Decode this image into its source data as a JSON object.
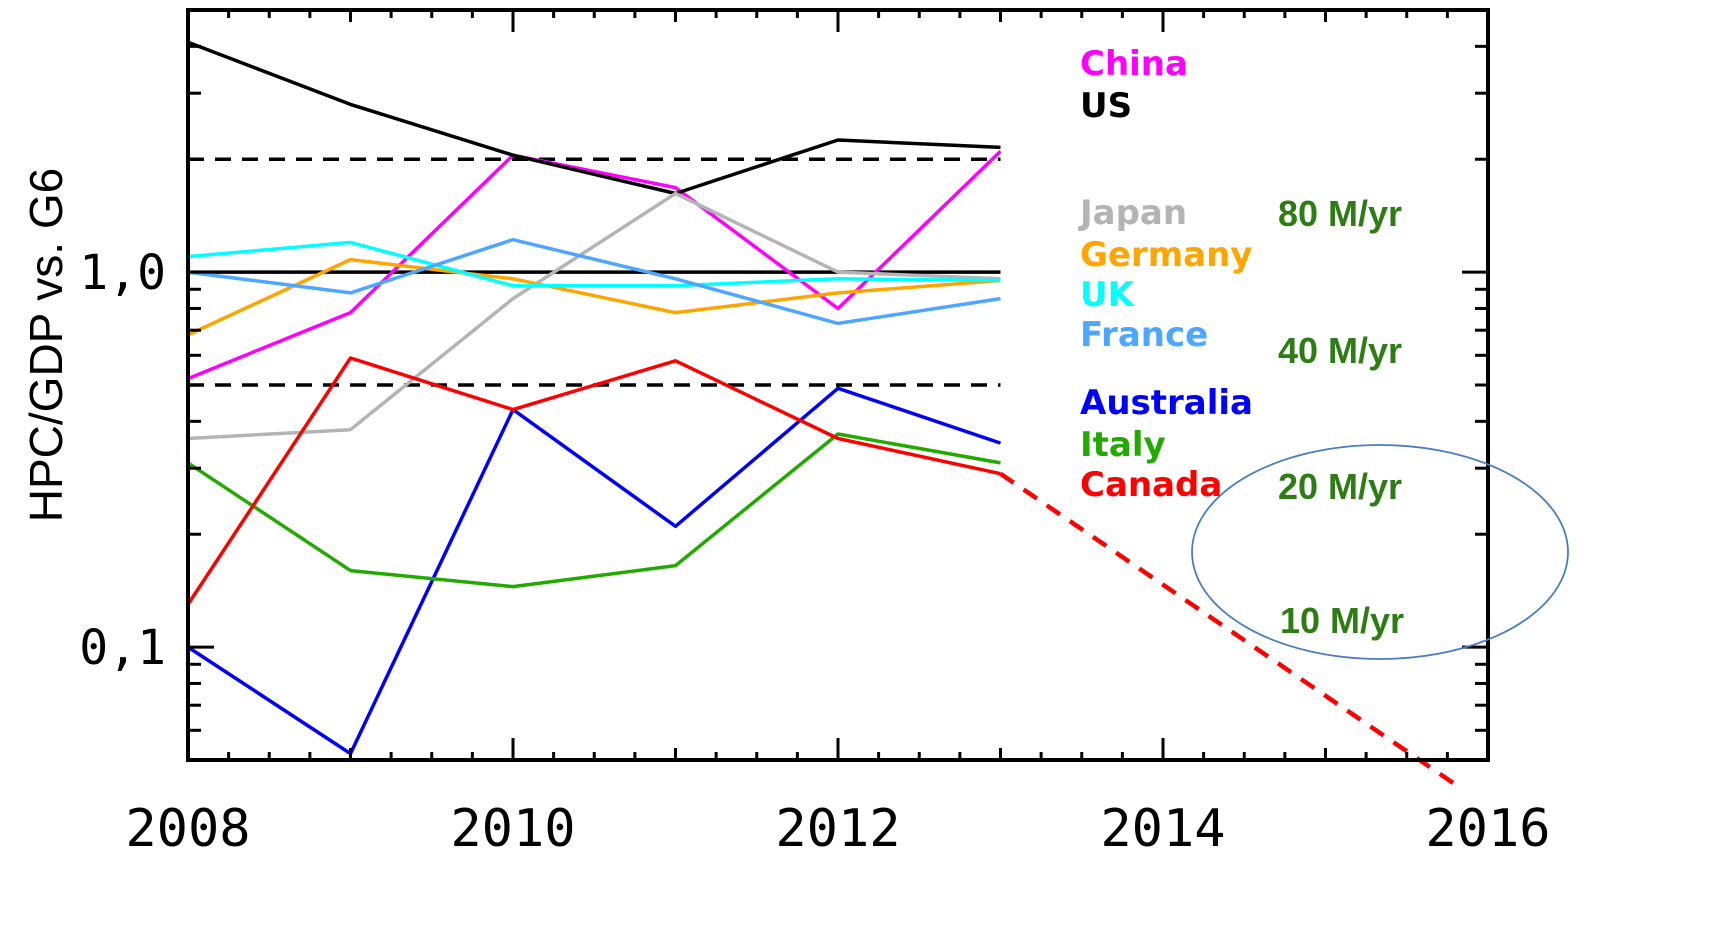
{
  "chart_data": {
    "type": "line",
    "ylabel": "HPC/GDP vs. G6",
    "xlabel": "",
    "title": "",
    "yscale": "log",
    "xlim": [
      2008,
      2016
    ],
    "ylim": [
      0.05,
      5
    ],
    "x_ticks": [
      "2008",
      "2010",
      "2012",
      "2014",
      "2016"
    ],
    "y_ticks": [
      {
        "value": 0.1,
        "label": "0,1"
      },
      {
        "value": 1.0,
        "label": "1,0"
      }
    ],
    "reference_lines": [
      {
        "value": 2.0,
        "style": "dashed"
      },
      {
        "value": 1.0,
        "style": "solid"
      },
      {
        "value": 0.5,
        "style": "dashed"
      }
    ],
    "x": [
      2008,
      2009,
      2010,
      2011,
      2012,
      2013
    ],
    "series": [
      {
        "name": "China",
        "color": "#ff00ff",
        "values": [
          0.52,
          0.78,
          2.05,
          1.68,
          0.8,
          2.1
        ]
      },
      {
        "name": "US",
        "color": "#000000",
        "values": [
          4.1,
          2.8,
          2.05,
          1.62,
          2.25,
          2.15
        ]
      },
      {
        "name": "Japan",
        "color": "#b4b4b4",
        "values": [
          0.36,
          0.38,
          0.85,
          1.62,
          1.0,
          0.96
        ]
      },
      {
        "name": "Germany",
        "color": "#ffa500",
        "values": [
          0.68,
          1.08,
          0.96,
          0.78,
          0.88,
          0.95
        ]
      },
      {
        "name": "UK",
        "color": "#00ffff",
        "values": [
          1.1,
          1.2,
          0.92,
          0.92,
          0.96,
          0.95
        ]
      },
      {
        "name": "France",
        "color": "#4da6ff",
        "values": [
          1.0,
          0.88,
          1.22,
          0.96,
          0.73,
          0.85
        ]
      },
      {
        "name": "Australia",
        "color": "#0000ff",
        "values": [
          0.1,
          0.052,
          0.43,
          0.21,
          0.49,
          0.35
        ]
      },
      {
        "name": "Italy",
        "color": "#22aa00",
        "values": [
          0.31,
          0.16,
          0.145,
          0.165,
          0.37,
          0.31
        ]
      },
      {
        "name": "Canada",
        "color": "#ff0000",
        "values": [
          0.13,
          0.59,
          0.43,
          0.58,
          0.36,
          0.29
        ]
      }
    ],
    "projection": {
      "series": "Canada",
      "style": "dashed",
      "color": "#ff0000",
      "x": [
        2013,
        2015.8
      ],
      "values": [
        0.29,
        0.043
      ]
    },
    "annotations": [
      {
        "text": "80 M/yr",
        "value": 1.0
      },
      {
        "text": "40 M/yr",
        "value": 0.5
      },
      {
        "text": "20 M/yr",
        "value": 0.25
      },
      {
        "text": "10 M/yr",
        "value": 0.1
      }
    ],
    "highlight": {
      "shape": "ellipse",
      "color": "#4a7ebf"
    },
    "legend_position": "right"
  }
}
